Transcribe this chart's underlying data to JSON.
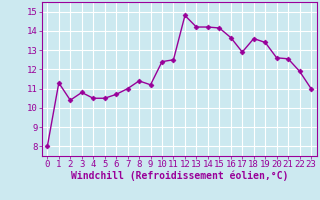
{
  "x": [
    0,
    1,
    2,
    3,
    4,
    5,
    6,
    7,
    8,
    9,
    10,
    11,
    12,
    13,
    14,
    15,
    16,
    17,
    18,
    19,
    20,
    21,
    22,
    23
  ],
  "y": [
    8.0,
    11.3,
    10.4,
    10.8,
    10.5,
    10.5,
    10.7,
    11.0,
    11.4,
    11.2,
    12.4,
    12.5,
    14.8,
    14.2,
    14.2,
    14.15,
    13.65,
    12.9,
    13.6,
    13.4,
    12.6,
    12.55,
    11.9,
    11.0
  ],
  "line_color": "#990099",
  "marker": "D",
  "marker_size": 2.5,
  "bg_color": "#cce9f0",
  "grid_color": "#ffffff",
  "xlabel": "Windchill (Refroidissement éolien,°C)",
  "xlabel_color": "#990099",
  "tick_color": "#990099",
  "ylim": [
    7.5,
    15.5
  ],
  "xlim": [
    -0.5,
    23.5
  ],
  "yticks": [
    8,
    9,
    10,
    11,
    12,
    13,
    14,
    15
  ],
  "xticks": [
    0,
    1,
    2,
    3,
    4,
    5,
    6,
    7,
    8,
    9,
    10,
    11,
    12,
    13,
    14,
    15,
    16,
    17,
    18,
    19,
    20,
    21,
    22,
    23
  ],
  "tick_fontsize": 6.5,
  "xlabel_fontsize": 7.0,
  "linewidth": 1.0
}
